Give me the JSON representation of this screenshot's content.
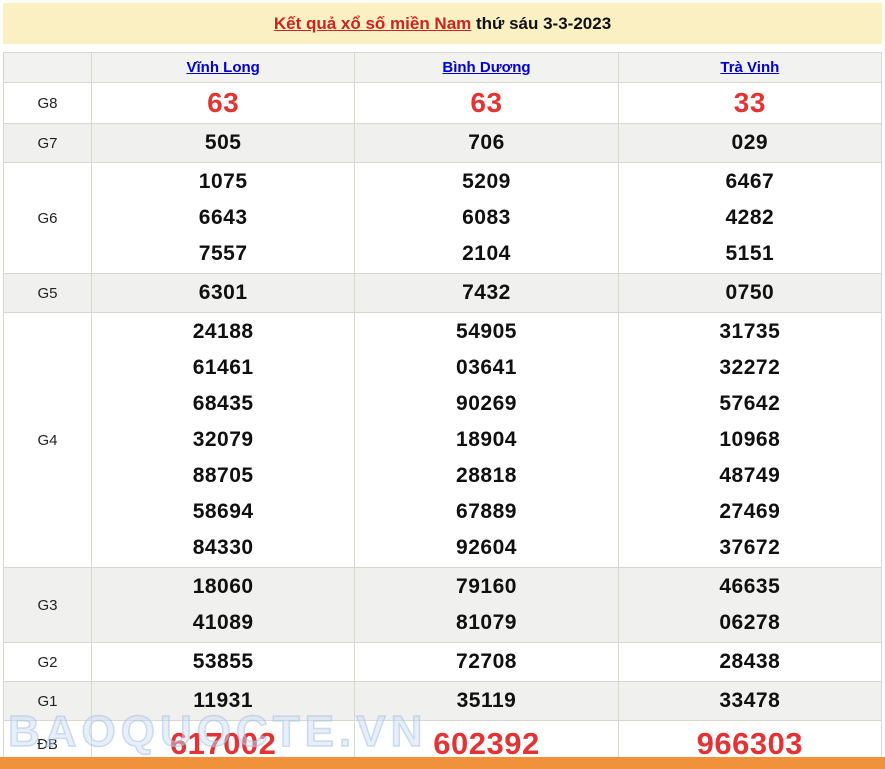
{
  "page": {
    "title_link": "Kết quả xổ số miền Nam",
    "title_rest": " thứ sáu 3-3-2023",
    "watermark": "BAOQUOCTE.VN"
  },
  "colors": {
    "yellow_banner": "#faf0c2",
    "title_red": "#cc2222",
    "link_blue": "#0000cc",
    "number_red": "#e13434",
    "orange_bar": "#f0923c",
    "row_shade": "#f0f0ee"
  },
  "table": {
    "columns": [
      "Vĩnh Long",
      "Bình Dương",
      "Trà Vinh"
    ],
    "rows": [
      {
        "label": "G8",
        "type": "red-large",
        "cells": [
          [
            "63"
          ],
          [
            "63"
          ],
          [
            "33"
          ]
        ]
      },
      {
        "label": "G7",
        "type": "plain",
        "cells": [
          [
            "505"
          ],
          [
            "706"
          ],
          [
            "029"
          ]
        ]
      },
      {
        "label": "G6",
        "type": "plain",
        "cells": [
          [
            "1075",
            "6643",
            "7557"
          ],
          [
            "5209",
            "6083",
            "2104"
          ],
          [
            "6467",
            "4282",
            "5151"
          ]
        ]
      },
      {
        "label": "G5",
        "type": "plain",
        "cells": [
          [
            "6301"
          ],
          [
            "7432"
          ],
          [
            "0750"
          ]
        ]
      },
      {
        "label": "G4",
        "type": "plain",
        "cells": [
          [
            "24188",
            "61461",
            "68435",
            "32079",
            "88705",
            "58694",
            "84330"
          ],
          [
            "54905",
            "03641",
            "90269",
            "18904",
            "28818",
            "67889",
            "92604"
          ],
          [
            "31735",
            "32272",
            "57642",
            "10968",
            "48749",
            "27469",
            "37672"
          ]
        ]
      },
      {
        "label": "G3",
        "type": "plain",
        "cells": [
          [
            "18060",
            "41089"
          ],
          [
            "79160",
            "81079"
          ],
          [
            "46635",
            "06278"
          ]
        ]
      },
      {
        "label": "G2",
        "type": "plain",
        "cells": [
          [
            "53855"
          ],
          [
            "72708"
          ],
          [
            "28438"
          ]
        ]
      },
      {
        "label": "G1",
        "type": "plain",
        "cells": [
          [
            "11931"
          ],
          [
            "35119"
          ],
          [
            "33478"
          ]
        ]
      },
      {
        "label": "ĐB",
        "type": "red-xlarge",
        "cells": [
          [
            "617002"
          ],
          [
            "602392"
          ],
          [
            "966303"
          ]
        ]
      }
    ]
  }
}
